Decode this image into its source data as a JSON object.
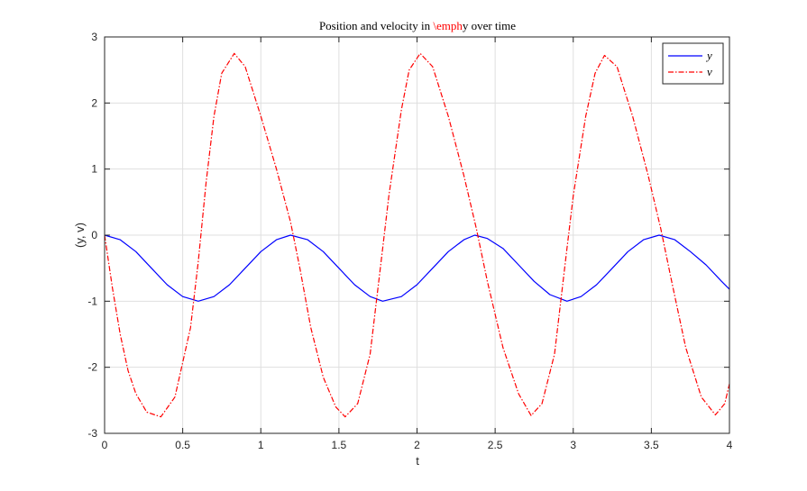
{
  "chart_data": {
    "type": "line",
    "title_parts": [
      {
        "text": "Position and velocity in ",
        "color": "#000000"
      },
      {
        "text": "\\emph",
        "color": "#ff0000"
      },
      {
        "text": "y over time",
        "color": "#000000"
      }
    ],
    "xlabel": "t",
    "ylabel": "(y, v)",
    "xlim": [
      0,
      4
    ],
    "ylim": [
      -3,
      3
    ],
    "xticks": [
      0,
      0.5,
      1,
      1.5,
      2,
      2.5,
      3,
      3.5,
      4
    ],
    "xtick_labels": [
      "0",
      "0.5",
      "1",
      "1.5",
      "2",
      "2.5",
      "3",
      "3.5",
      "4"
    ],
    "yticks": [
      -3,
      -2,
      -1,
      0,
      1,
      2,
      3
    ],
    "ytick_labels": [
      "-3",
      "-2",
      "-1",
      "0",
      "1",
      "2",
      "3"
    ],
    "grid": true,
    "legend_position": "top-right",
    "series": [
      {
        "name": "y",
        "color": "#0000ff",
        "dash": "solid",
        "points": [
          [
            0,
            0
          ],
          [
            0.1,
            -0.07
          ],
          [
            0.2,
            -0.25
          ],
          [
            0.3,
            -0.5
          ],
          [
            0.4,
            -0.75
          ],
          [
            0.5,
            -0.93
          ],
          [
            0.6,
            -1.0
          ],
          [
            0.7,
            -0.93
          ],
          [
            0.8,
            -0.75
          ],
          [
            0.9,
            -0.5
          ],
          [
            1.0,
            -0.25
          ],
          [
            1.1,
            -0.07
          ],
          [
            1.19,
            0
          ],
          [
            1.3,
            -0.07
          ],
          [
            1.4,
            -0.25
          ],
          [
            1.5,
            -0.5
          ],
          [
            1.6,
            -0.75
          ],
          [
            1.7,
            -0.93
          ],
          [
            1.78,
            -1.0
          ],
          [
            1.9,
            -0.93
          ],
          [
            2.0,
            -0.75
          ],
          [
            2.1,
            -0.5
          ],
          [
            2.2,
            -0.25
          ],
          [
            2.3,
            -0.07
          ],
          [
            2.37,
            0
          ],
          [
            2.45,
            -0.05
          ],
          [
            2.55,
            -0.2
          ],
          [
            2.65,
            -0.45
          ],
          [
            2.75,
            -0.7
          ],
          [
            2.85,
            -0.9
          ],
          [
            2.96,
            -1.0
          ],
          [
            3.05,
            -0.93
          ],
          [
            3.15,
            -0.75
          ],
          [
            3.25,
            -0.5
          ],
          [
            3.35,
            -0.25
          ],
          [
            3.45,
            -0.07
          ],
          [
            3.55,
            0
          ],
          [
            3.65,
            -0.07
          ],
          [
            3.75,
            -0.25
          ],
          [
            3.85,
            -0.45
          ],
          [
            3.95,
            -0.7
          ],
          [
            4.0,
            -0.82
          ]
        ]
      },
      {
        "name": "v",
        "color": "#ff0000",
        "dash": "dashdot",
        "points": [
          [
            0,
            0
          ],
          [
            0.05,
            -0.8
          ],
          [
            0.1,
            -1.5
          ],
          [
            0.15,
            -2.05
          ],
          [
            0.2,
            -2.4
          ],
          [
            0.27,
            -2.68
          ],
          [
            0.36,
            -2.75
          ],
          [
            0.45,
            -2.45
          ],
          [
            0.55,
            -1.4
          ],
          [
            0.6,
            -0.4
          ],
          [
            0.65,
            0.8
          ],
          [
            0.7,
            1.8
          ],
          [
            0.75,
            2.45
          ],
          [
            0.83,
            2.75
          ],
          [
            0.9,
            2.55
          ],
          [
            1.0,
            1.8
          ],
          [
            1.1,
            1.0
          ],
          [
            1.19,
            0.2
          ],
          [
            1.25,
            -0.5
          ],
          [
            1.32,
            -1.4
          ],
          [
            1.4,
            -2.15
          ],
          [
            1.48,
            -2.6
          ],
          [
            1.54,
            -2.75
          ],
          [
            1.62,
            -2.55
          ],
          [
            1.7,
            -1.8
          ],
          [
            1.78,
            -0.2
          ],
          [
            1.82,
            0.6
          ],
          [
            1.9,
            1.9
          ],
          [
            1.95,
            2.5
          ],
          [
            2.02,
            2.75
          ],
          [
            2.1,
            2.55
          ],
          [
            2.2,
            1.8
          ],
          [
            2.3,
            0.9
          ],
          [
            2.38,
            0.1
          ],
          [
            2.45,
            -0.7
          ],
          [
            2.55,
            -1.7
          ],
          [
            2.65,
            -2.4
          ],
          [
            2.73,
            -2.73
          ],
          [
            2.8,
            -2.55
          ],
          [
            2.88,
            -1.8
          ],
          [
            2.96,
            -0.2
          ],
          [
            3.0,
            0.6
          ],
          [
            3.08,
            1.8
          ],
          [
            3.14,
            2.45
          ],
          [
            3.2,
            2.72
          ],
          [
            3.28,
            2.55
          ],
          [
            3.38,
            1.8
          ],
          [
            3.48,
            0.9
          ],
          [
            3.56,
            0.1
          ],
          [
            3.63,
            -0.7
          ],
          [
            3.72,
            -1.7
          ],
          [
            3.82,
            -2.45
          ],
          [
            3.91,
            -2.72
          ],
          [
            3.97,
            -2.55
          ],
          [
            4.0,
            -2.25
          ]
        ]
      }
    ]
  }
}
